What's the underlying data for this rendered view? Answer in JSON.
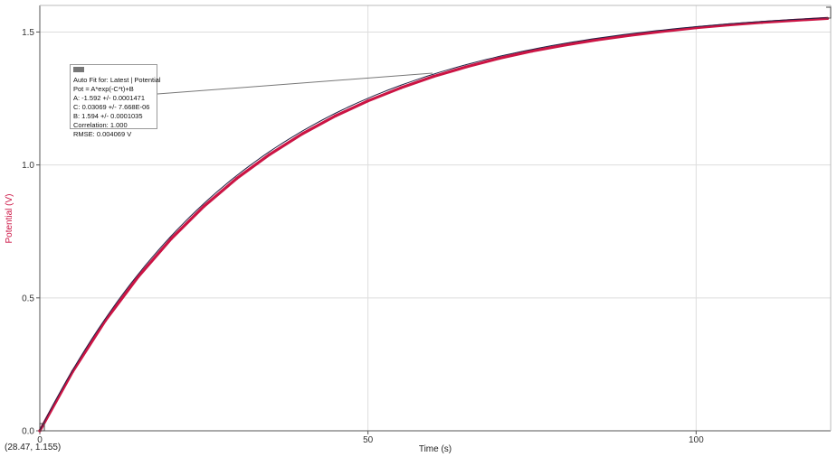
{
  "chart_data": {
    "type": "scatter",
    "title": "",
    "xlabel": "Time (s)",
    "ylabel": "Potential (V)",
    "xlim": [
      0,
      120.5
    ],
    "ylim": [
      0,
      1.6
    ],
    "x_ticks": [
      "0",
      "50",
      "100"
    ],
    "y_ticks": [
      "0.0",
      "0.5",
      "1.0",
      "1.5"
    ],
    "grid": true,
    "fit": {
      "A": -1.592,
      "C": 0.03069,
      "B": 1.594,
      "equation": "A*exp(-C*t)+B"
    },
    "x": [
      0,
      5,
      10,
      15,
      20,
      25,
      30,
      35,
      40,
      45,
      50,
      55,
      60,
      65,
      70,
      75,
      80,
      85,
      90,
      95,
      100,
      105,
      110,
      115,
      120
    ],
    "y": [
      0.0,
      0.223,
      0.415,
      0.58,
      0.722,
      0.844,
      0.949,
      1.039,
      1.117,
      1.184,
      1.241,
      1.29,
      1.333,
      1.369,
      1.401,
      1.428,
      1.451,
      1.471,
      1.488,
      1.503,
      1.516,
      1.527,
      1.536,
      1.544,
      1.551
    ],
    "series_color": "#cc1444",
    "fit_color": "#222244"
  },
  "fit_box": {
    "line1": "Auto Fit for: Latest | Potential",
    "line2": "Pot = A*exp(-C*t)+B",
    "line3": "A: -1.592 +/- 0.0001471",
    "line4": "C: 0.03069 +/- 7.668E-06",
    "line5": "B: 1.594 +/- 0.0001035",
    "line6": "Correlation: 1.000",
    "line7": "RMSE: 0.004069 V"
  },
  "coord_readout": "(28.47, 1.155)"
}
